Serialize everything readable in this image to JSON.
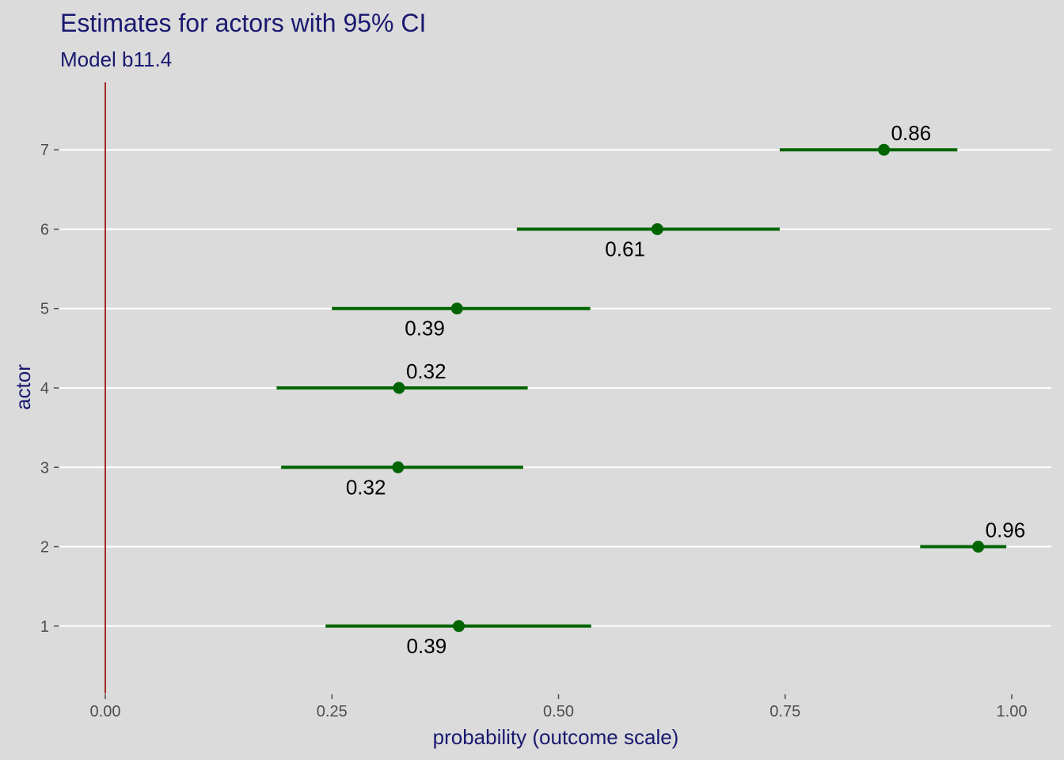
{
  "chart_data": {
    "type": "pointrange",
    "title": "Estimates for actors with 95% CI",
    "subtitle": "Model b11.4",
    "xlabel": "probability (outcome scale)",
    "ylabel": "actor",
    "xlim": [
      0,
      1
    ],
    "ylim": [
      0.15,
      7.85
    ],
    "x_ticks": [
      "0.00",
      "0.25",
      "0.50",
      "0.75",
      "1.00"
    ],
    "y_ticks": [
      "1",
      "2",
      "3",
      "4",
      "5",
      "6",
      "7"
    ],
    "reference_line": {
      "x": 0,
      "color": "#A52A2A"
    },
    "grid": "horizontal-major",
    "colors": {
      "background": "#DBDBDB",
      "point": "#006400",
      "title": "#191970",
      "grid": "#FFFFFF"
    },
    "points": [
      {
        "actor": 1,
        "estimate": 0.39,
        "lower": 0.243,
        "upper": 0.536,
        "label": "0.39",
        "label_pos": "below"
      },
      {
        "actor": 2,
        "estimate": 0.963,
        "lower": 0.899,
        "upper": 0.994,
        "label": "0.96",
        "label_pos": "above"
      },
      {
        "actor": 3,
        "estimate": 0.323,
        "lower": 0.194,
        "upper": 0.461,
        "label": "0.32",
        "label_pos": "below"
      },
      {
        "actor": 4,
        "estimate": 0.324,
        "lower": 0.189,
        "upper": 0.466,
        "label": "0.32",
        "label_pos": "above"
      },
      {
        "actor": 5,
        "estimate": 0.388,
        "lower": 0.25,
        "upper": 0.535,
        "label": "0.39",
        "label_pos": "below"
      },
      {
        "actor": 6,
        "estimate": 0.609,
        "lower": 0.454,
        "upper": 0.744,
        "label": "0.61",
        "label_pos": "below"
      },
      {
        "actor": 7,
        "estimate": 0.859,
        "lower": 0.744,
        "upper": 0.94,
        "label": "0.86",
        "label_pos": "above"
      }
    ]
  }
}
